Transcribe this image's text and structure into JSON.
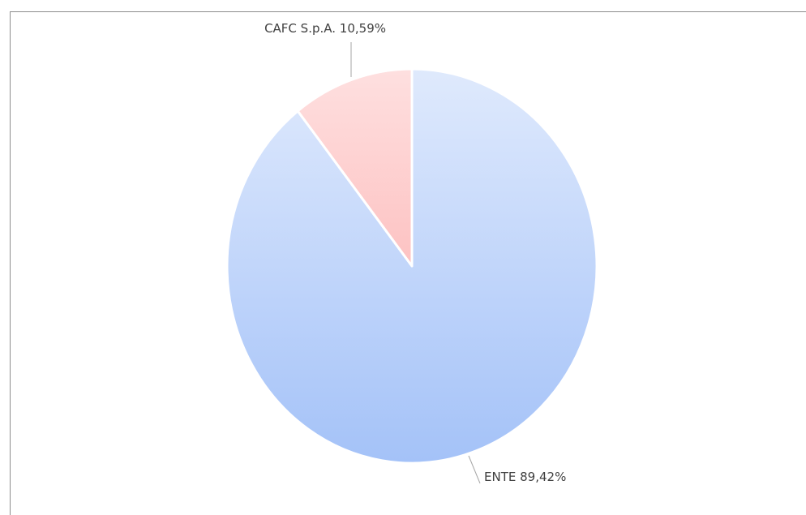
{
  "chart_data": {
    "type": "pie",
    "categories": [
      "ENTE",
      "CAFC S.p.A."
    ],
    "values": [
      89.42,
      10.59
    ],
    "value_labels": [
      "89,42%",
      "10,59%"
    ],
    "colors": [
      "#a4c2f8",
      "#fca5a5"
    ]
  }
}
